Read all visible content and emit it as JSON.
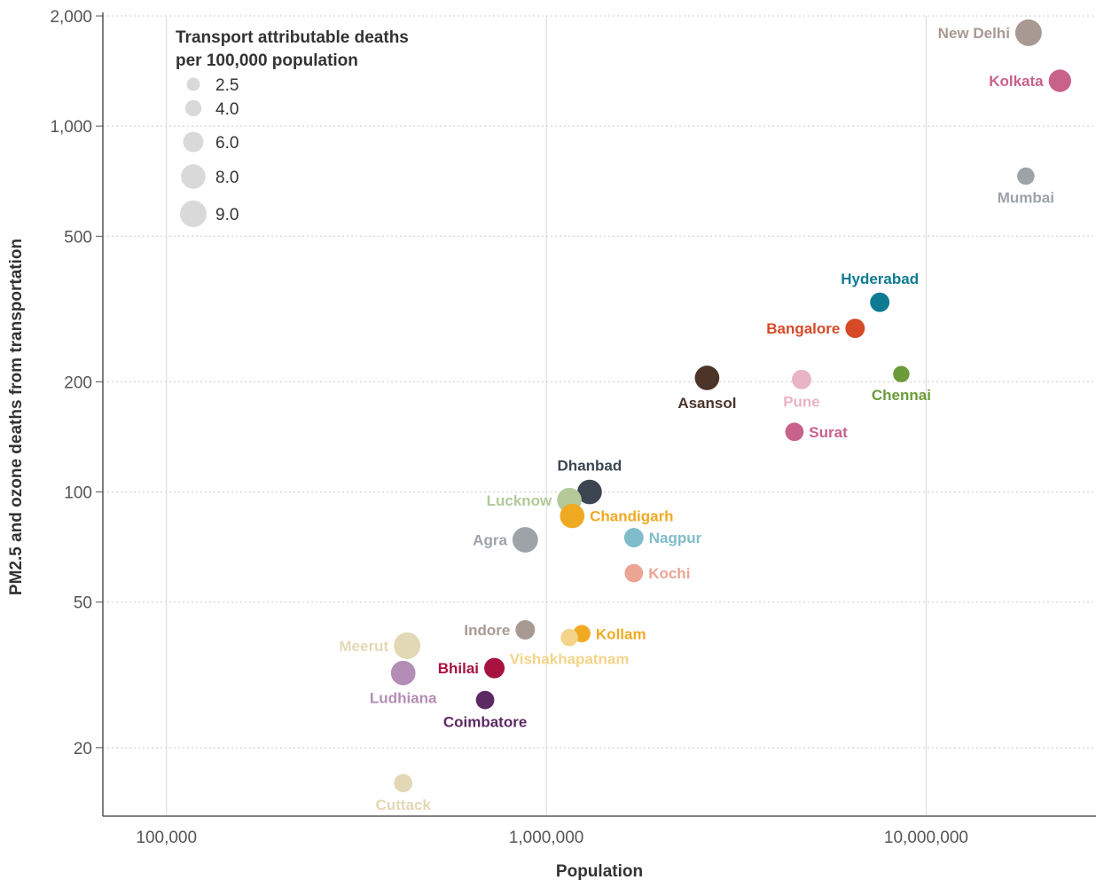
{
  "chart_data": {
    "type": "scatter",
    "xlabel": "Population",
    "ylabel": "PM2.5 and ozone deaths from transportation",
    "x_scale": "log",
    "y_scale": "log",
    "xlim": [
      68000,
      28000000
    ],
    "ylim": [
      13,
      2000
    ],
    "x_ticks": [
      {
        "value": 100000,
        "label": "100,000"
      },
      {
        "value": 1000000,
        "label": "1,000,000"
      },
      {
        "value": 10000000,
        "label": "10,000,000"
      }
    ],
    "y_ticks": [
      {
        "value": 20,
        "label": "20"
      },
      {
        "value": 50,
        "label": "50"
      },
      {
        "value": 100,
        "label": "100"
      },
      {
        "value": 200,
        "label": "200"
      },
      {
        "value": 500,
        "label": "500"
      },
      {
        "value": 1000,
        "label": "1,000"
      },
      {
        "value": 2000,
        "label": "2,000"
      }
    ],
    "grid": {
      "vertical": true,
      "horizontal_dotted": true
    },
    "size_legend": {
      "title_lines": [
        "Transport attributable deaths",
        "per 100,000 population"
      ],
      "placement": "top-left",
      "entries": [
        {
          "label": "2.5",
          "value": 2.5
        },
        {
          "label": "4.0",
          "value": 4.0
        },
        {
          "label": "6.0",
          "value": 6.0
        },
        {
          "label": "8.0",
          "value": 8.0
        },
        {
          "label": "9.0",
          "value": 9.0
        }
      ]
    },
    "points": [
      {
        "name": "New Delhi",
        "population": 18600000,
        "deaths": 1800,
        "rate": 9.0,
        "color": "#a89a92",
        "label_side": "left"
      },
      {
        "name": "Kolkata",
        "population": 22500000,
        "deaths": 1330,
        "rate": 7.0,
        "color": "#c9628a",
        "label_side": "left"
      },
      {
        "name": "Mumbai",
        "population": 18300000,
        "deaths": 730,
        "rate": 4.5,
        "color": "#9ea3a8",
        "label_side": "below"
      },
      {
        "name": "Hyderabad",
        "population": 7550000,
        "deaths": 330,
        "rate": 5.5,
        "color": "#0e7b92",
        "label_side": "above"
      },
      {
        "name": "Bangalore",
        "population": 6500000,
        "deaths": 280,
        "rate": 5.5,
        "color": "#d64a27",
        "label_side": "left"
      },
      {
        "name": "Chennai",
        "population": 8600000,
        "deaths": 210,
        "rate": 4.0,
        "color": "#6b9b3a",
        "label_side": "below"
      },
      {
        "name": "Asansol",
        "population": 2650000,
        "deaths": 205,
        "rate": 8.0,
        "color": "#4d3428",
        "label_side": "below"
      },
      {
        "name": "Pune",
        "population": 4700000,
        "deaths": 203,
        "rate": 5.5,
        "color": "#e8b4c6",
        "label_side": "below"
      },
      {
        "name": "Surat",
        "population": 4500000,
        "deaths": 146,
        "rate": 5.0,
        "color": "#c9628a",
        "label_side": "right"
      },
      {
        "name": "Dhanbad",
        "population": 1300000,
        "deaths": 100,
        "rate": 8.0,
        "color": "#3b4651",
        "label_side": "above"
      },
      {
        "name": "Lucknow",
        "population": 1150000,
        "deaths": 95,
        "rate": 8.0,
        "color": "#b3c99a",
        "label_side": "left"
      },
      {
        "name": "Chandigarh",
        "population": 1170000,
        "deaths": 86,
        "rate": 8.0,
        "color": "#f0aa22",
        "label_side": "right"
      },
      {
        "name": "Agra",
        "population": 880000,
        "deaths": 74,
        "rate": 8.5,
        "color": "#9ea3a8",
        "label_side": "left"
      },
      {
        "name": "Nagpur",
        "population": 1700000,
        "deaths": 75,
        "rate": 5.5,
        "color": "#7fbdca",
        "label_side": "right"
      },
      {
        "name": "Kochi",
        "population": 1700000,
        "deaths": 60,
        "rate": 5.0,
        "color": "#eca494",
        "label_side": "right"
      },
      {
        "name": "Indore",
        "population": 880000,
        "deaths": 42,
        "rate": 5.5,
        "color": "#a89a92",
        "label_side": "left"
      },
      {
        "name": "Kollam",
        "population": 1240000,
        "deaths": 41,
        "rate": 4.5,
        "color": "#f0aa22",
        "label_side": "right"
      },
      {
        "name": "Vishakhapatnam",
        "population": 1150000,
        "deaths": 40,
        "rate": 4.5,
        "color": "#f4d48a",
        "label_side": "below"
      },
      {
        "name": "Meerut",
        "population": 430000,
        "deaths": 38,
        "rate": 9.0,
        "color": "#e3d8b6",
        "label_side": "left"
      },
      {
        "name": "Bhilai",
        "population": 730000,
        "deaths": 33,
        "rate": 6.0,
        "color": "#a8123e",
        "label_side": "left"
      },
      {
        "name": "Ludhiana",
        "population": 420000,
        "deaths": 32,
        "rate": 8.0,
        "color": "#b38db5",
        "label_side": "below"
      },
      {
        "name": "Coimbatore",
        "population": 690000,
        "deaths": 27,
        "rate": 5.0,
        "color": "#5b2a62",
        "label_side": "below"
      },
      {
        "name": "Cuttack",
        "population": 420000,
        "deaths": 16,
        "rate": 5.0,
        "color": "#e3d8b6",
        "label_side": "below"
      }
    ]
  }
}
